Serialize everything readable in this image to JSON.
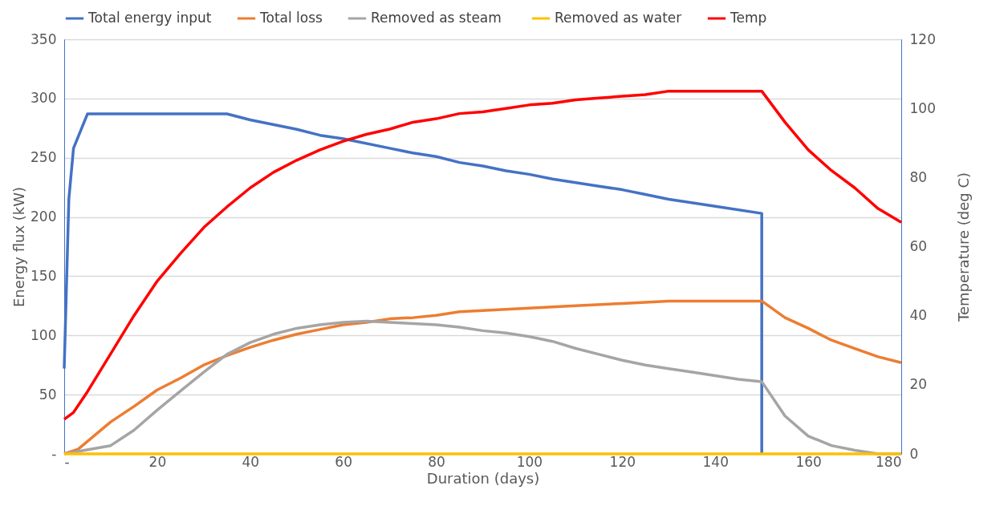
{
  "chart_data": {
    "type": "line",
    "xlabel": "Duration (days)",
    "ylabel": "Energy flux (kW)",
    "y2label": "Temperature (deg C)",
    "xlim": [
      0,
      180
    ],
    "xticks": [
      {
        "value": 0,
        "label": "-"
      },
      20,
      40,
      60,
      80,
      100,
      120,
      140,
      160,
      180
    ],
    "ylim": [
      0,
      350
    ],
    "yticks": [
      {
        "value": 0,
        "label": "-"
      },
      50,
      100,
      150,
      200,
      250,
      300,
      350
    ],
    "y2lim": [
      0,
      120
    ],
    "y2ticks": [
      0,
      20,
      40,
      60,
      80,
      100,
      120
    ],
    "grid": "y",
    "legend": "top",
    "marker": "none",
    "line_style": "solid",
    "series": [
      {
        "name": "Total energy input",
        "color": "#4472c4",
        "x": [
          0,
          1,
          2,
          5,
          35,
          40,
          50,
          55,
          60,
          70,
          75,
          80,
          85,
          90,
          95,
          100,
          105,
          110,
          115,
          120,
          125,
          130,
          140,
          150,
          150
        ],
        "values": [
          72,
          215,
          258,
          287,
          287,
          282,
          274,
          269,
          266,
          258,
          254,
          251,
          246,
          243,
          239,
          236,
          232,
          229,
          226,
          223,
          219,
          215,
          209,
          203,
          0
        ]
      },
      {
        "name": "Total loss",
        "color": "#ed7d31",
        "x": [
          0,
          3,
          10,
          15,
          20,
          25,
          30,
          35,
          40,
          45,
          50,
          55,
          60,
          65,
          70,
          75,
          80,
          85,
          90,
          95,
          100,
          105,
          110,
          120,
          130,
          150,
          155,
          160,
          165,
          170,
          175,
          180
        ],
        "values": [
          0,
          4,
          27,
          40,
          54,
          64,
          75,
          83,
          90,
          96,
          101,
          105,
          109,
          111,
          114,
          115,
          117,
          120,
          121,
          122,
          123,
          124,
          125,
          127,
          129,
          129,
          115,
          106,
          96,
          89,
          82,
          77
        ]
      },
      {
        "name": "Removed  as steam",
        "color": "#a5a5a5",
        "x": [
          0,
          10,
          15,
          20,
          25,
          30,
          35,
          40,
          45,
          50,
          55,
          60,
          65,
          70,
          75,
          80,
          85,
          90,
          95,
          100,
          105,
          110,
          115,
          120,
          125,
          130,
          135,
          140,
          145,
          150,
          155,
          160,
          165,
          170,
          175,
          180
        ],
        "values": [
          0,
          7,
          20,
          37,
          53,
          69,
          84,
          94,
          101,
          106,
          109,
          111,
          112,
          111,
          110,
          109,
          107,
          104,
          102,
          99,
          95,
          89,
          84,
          79,
          75,
          72,
          69,
          66,
          63,
          61,
          32,
          15,
          7,
          3,
          0,
          0
        ]
      },
      {
        "name": "Removed as water",
        "color": "#ffc000",
        "x": [
          0,
          180
        ],
        "values": [
          0,
          0
        ]
      },
      {
        "name": "Temp",
        "color": "#ff0000",
        "axis": "y2",
        "x": [
          0,
          2,
          5,
          10,
          15,
          20,
          25,
          30,
          35,
          40,
          45,
          50,
          55,
          60,
          65,
          70,
          75,
          80,
          85,
          90,
          95,
          100,
          105,
          110,
          115,
          120,
          125,
          130,
          150,
          155,
          160,
          165,
          170,
          175,
          180
        ],
        "values": [
          10,
          12,
          18,
          29,
          40,
          50,
          58,
          65.5,
          71.5,
          77,
          81.5,
          85,
          88,
          90.5,
          92.5,
          94,
          96,
          97,
          98.5,
          99,
          100,
          101,
          101.5,
          102.5,
          103,
          103.5,
          104,
          105,
          105,
          96,
          88,
          82,
          77,
          71,
          67
        ]
      }
    ]
  }
}
